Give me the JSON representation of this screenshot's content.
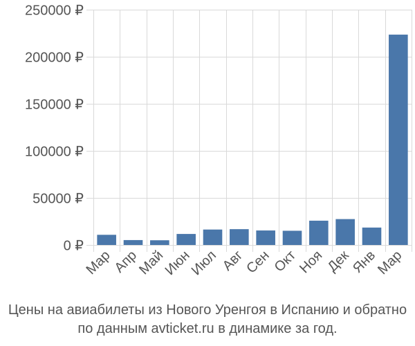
{
  "chart_data": {
    "type": "bar",
    "categories": [
      "Мар",
      "Апр",
      "Май",
      "Июн",
      "Июл",
      "Авг",
      "Сен",
      "Окт",
      "Ноя",
      "Дек",
      "Янв",
      "Мар"
    ],
    "values": [
      10800,
      5200,
      5000,
      11700,
      16400,
      16800,
      15400,
      15100,
      25800,
      27500,
      18500,
      223500
    ],
    "ylim": [
      0,
      250000
    ],
    "yticks": [
      0,
      50000,
      100000,
      150000,
      200000,
      250000
    ],
    "ytick_labels": [
      "0 ₽",
      "50000 ₽",
      "100000 ₽",
      "150000 ₽",
      "200000 ₽",
      "250000 ₽"
    ],
    "grid": true,
    "bar_color": "#4a77aa",
    "grid_color": "#d9d9d9",
    "caption": {
      "line1": "Цены на авиабилеты из Нового Уренгоя в Испанию и обратно",
      "line2": "по данным avticket.ru в динамике за год."
    }
  }
}
